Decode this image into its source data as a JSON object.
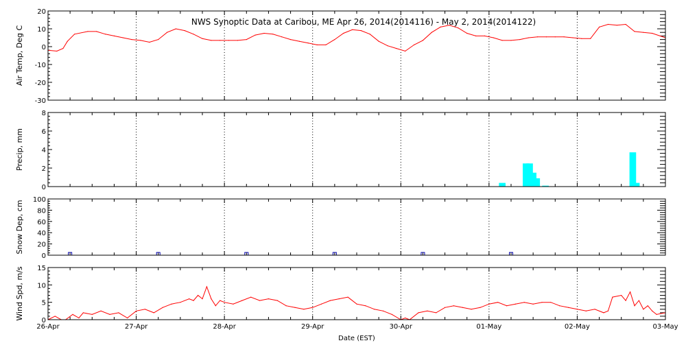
{
  "chart_data": {
    "type": "line",
    "title": "NWS Synoptic Data at Caribou, ME   Apr 26, 2014(2014116) - May  2, 2014(2014122)",
    "xlabel": "Date (EST)",
    "x_ticks": [
      "26-Apr",
      "27-Apr",
      "28-Apr",
      "29-Apr",
      "30-Apr",
      "01-May",
      "02-May",
      "03-May"
    ],
    "xlim_days": [
      0,
      7
    ],
    "panels": [
      {
        "name": "air_temp",
        "ylabel": "Air Temp, Deg C",
        "ylim": [
          -30,
          20
        ],
        "yticks": [
          "-30",
          "-20",
          "-10",
          "0",
          "10",
          "20"
        ],
        "ytick_values": [
          -30,
          -20,
          -10,
          0,
          10,
          20
        ],
        "mode": "line",
        "color": "#ff0000",
        "x": [
          0,
          0.1,
          0.17,
          0.22,
          0.3,
          0.45,
          0.55,
          0.65,
          0.75,
          0.85,
          0.95,
          1.05,
          1.15,
          1.25,
          1.35,
          1.45,
          1.55,
          1.65,
          1.75,
          1.85,
          1.95,
          2.05,
          2.15,
          2.25,
          2.35,
          2.45,
          2.55,
          2.65,
          2.75,
          2.85,
          2.95,
          3.05,
          3.15,
          3.25,
          3.35,
          3.45,
          3.55,
          3.65,
          3.75,
          3.85,
          3.95,
          4.05,
          4.15,
          4.25,
          4.35,
          4.45,
          4.55,
          4.65,
          4.75,
          4.85,
          4.95,
          5.05,
          5.15,
          5.25,
          5.35,
          5.45,
          5.55,
          5.65,
          5.75,
          5.85,
          5.95,
          6.05,
          6.15,
          6.25,
          6.35,
          6.45,
          6.55,
          6.65,
          6.75,
          6.85,
          7
        ],
        "y": [
          -2,
          -2.5,
          -1,
          3,
          7,
          8.5,
          8.5,
          7,
          6,
          5,
          4,
          3.5,
          2.5,
          4,
          8,
          10,
          9,
          7,
          4.5,
          3.5,
          3.5,
          3.5,
          3.5,
          4,
          6.5,
          7.5,
          7,
          5.5,
          4,
          3,
          2,
          1,
          1,
          4,
          7.5,
          9.5,
          9,
          7,
          3,
          0.5,
          -1,
          -2.5,
          1,
          3.5,
          8,
          11,
          12,
          10.5,
          7.5,
          6,
          6,
          5,
          3.5,
          3.5,
          4,
          5,
          5.5,
          5.5,
          5.5,
          5.5,
          5,
          4.5,
          4.5,
          11,
          12.5,
          12,
          12.5,
          8.5,
          8,
          7.5,
          5
        ]
      },
      {
        "name": "precip",
        "ylabel": "Precip, mm",
        "ylim": [
          0,
          8
        ],
        "yticks": [
          "0",
          "2",
          "4",
          "6",
          "8"
        ],
        "ytick_values": [
          0,
          2,
          4,
          6,
          8
        ],
        "mode": "bar",
        "color": "#00ffff",
        "x": [
          5.15,
          5.42,
          5.46,
          5.5,
          5.54,
          5.64,
          6.63,
          6.67
        ],
        "y": [
          0.4,
          2.5,
          2.5,
          1.5,
          0.9,
          0.1,
          3.7,
          0.4
        ]
      },
      {
        "name": "snow_depth",
        "ylabel": "Snow Dep, cm",
        "ylim": [
          0,
          100
        ],
        "yticks": [
          "0",
          "20",
          "40",
          "60",
          "80",
          "100"
        ],
        "ytick_values": [
          0,
          20,
          40,
          60,
          80,
          100
        ],
        "mode": "marker",
        "color": "#0000aa",
        "x": [
          0.25,
          1.25,
          2.25,
          3.25,
          4.25,
          5.25
        ],
        "y": [
          0,
          0,
          0,
          0,
          0,
          0
        ]
      },
      {
        "name": "wind_speed",
        "ylabel": "Wind Spd, m/s",
        "ylim": [
          0,
          15
        ],
        "yticks": [
          "0",
          "5",
          "10",
          "15"
        ],
        "ytick_values": [
          0,
          5,
          10,
          15
        ],
        "mode": "line",
        "color": "#ff0000",
        "x": [
          0,
          0.08,
          0.15,
          0.2,
          0.28,
          0.35,
          0.4,
          0.5,
          0.6,
          0.7,
          0.8,
          0.9,
          1.0,
          1.1,
          1.2,
          1.3,
          1.4,
          1.5,
          1.6,
          1.65,
          1.7,
          1.75,
          1.8,
          1.85,
          1.9,
          1.95,
          2.0,
          2.1,
          2.2,
          2.3,
          2.4,
          2.5,
          2.6,
          2.7,
          2.8,
          2.9,
          3.0,
          3.1,
          3.2,
          3.3,
          3.4,
          3.5,
          3.6,
          3.7,
          3.8,
          3.9,
          4.0,
          4.05,
          4.1,
          4.2,
          4.3,
          4.4,
          4.5,
          4.6,
          4.7,
          4.8,
          4.9,
          5.0,
          5.1,
          5.2,
          5.3,
          5.4,
          5.5,
          5.6,
          5.7,
          5.8,
          5.9,
          6.0,
          6.1,
          6.2,
          6.3,
          6.35,
          6.4,
          6.5,
          6.55,
          6.6,
          6.65,
          6.7,
          6.75,
          6.8,
          6.85,
          6.9,
          7.0
        ],
        "y": [
          0,
          1,
          0,
          0,
          1.5,
          0.5,
          2,
          1.5,
          2.5,
          1.5,
          2,
          0.5,
          2.5,
          3,
          2,
          3.5,
          4.5,
          5,
          6,
          5.5,
          7,
          6,
          9.5,
          6,
          4,
          5.5,
          5,
          4.5,
          5.5,
          6.5,
          5.5,
          6,
          5.5,
          4,
          3.5,
          3,
          3.5,
          4.5,
          5.5,
          6,
          6.5,
          4.5,
          4,
          3,
          2.5,
          1.5,
          0,
          0.5,
          0,
          2,
          2.5,
          2,
          3.5,
          4,
          3.5,
          3,
          3.5,
          4.5,
          5,
          4,
          4.5,
          5,
          4.5,
          5,
          5,
          4,
          3.5,
          3,
          2.5,
          3,
          2,
          2.5,
          6.5,
          7,
          5.5,
          8,
          4,
          5.5,
          3,
          4,
          2.5,
          1.5,
          2
        ]
      }
    ]
  }
}
